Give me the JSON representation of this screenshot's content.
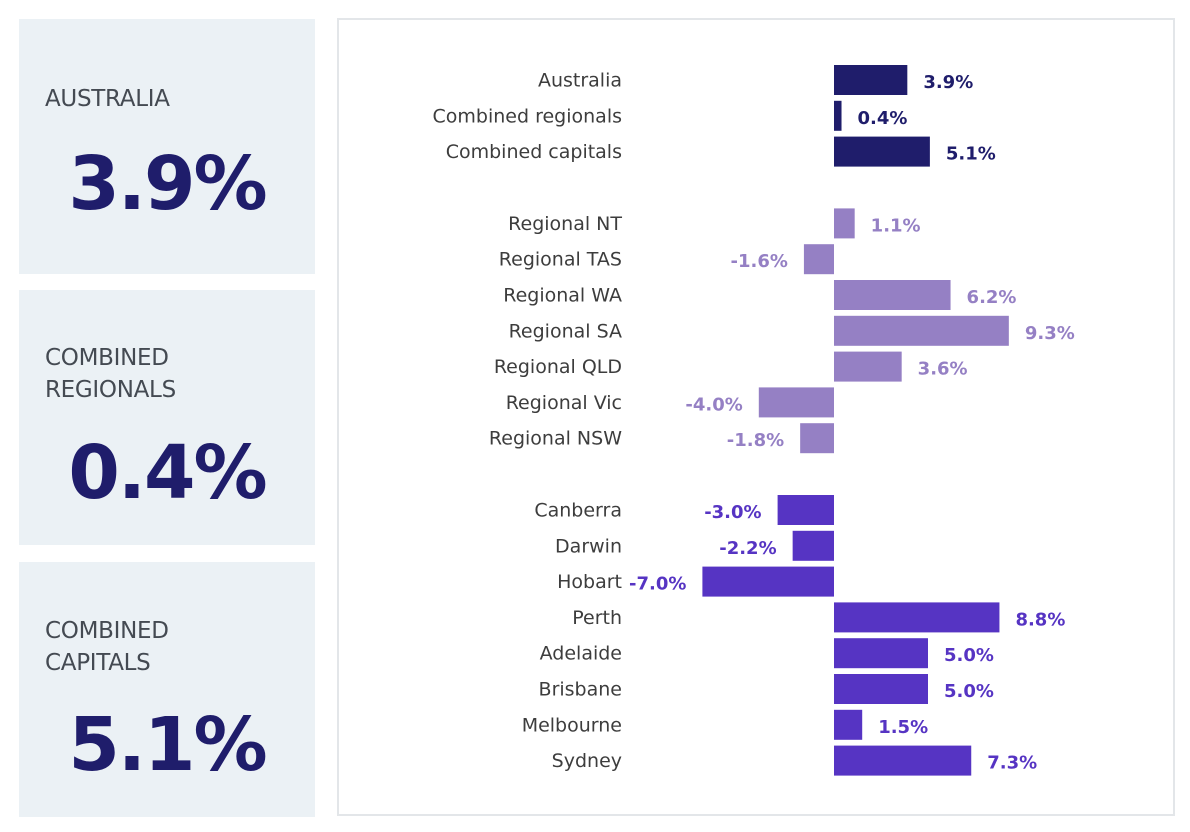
{
  "kpis": [
    {
      "label_lines": [
        "AUSTRALIA"
      ],
      "value": "3.9%"
    },
    {
      "label_lines": [
        "COMBINED",
        "REGIONALS"
      ],
      "value": "0.4%"
    },
    {
      "label_lines": [
        "COMBINED",
        "CAPITALS"
      ],
      "value": "5.1%"
    }
  ],
  "colors": {
    "navy": "#1f1d6b",
    "lavender": "#9580c4",
    "purple": "#5634c3"
  },
  "chart_data": {
    "type": "bar",
    "orientation": "horizontal",
    "title": "",
    "xlabel": "",
    "ylabel": "",
    "xlim": [
      -10,
      10
    ],
    "groups": [
      {
        "color": "navy",
        "bars": [
          {
            "label": "Australia",
            "value": 3.9,
            "value_label": "3.9%"
          },
          {
            "label": "Combined regionals",
            "value": 0.4,
            "value_label": "0.4%"
          },
          {
            "label": "Combined capitals",
            "value": 5.1,
            "value_label": "5.1%"
          }
        ]
      },
      {
        "color": "lavender",
        "bars": [
          {
            "label": "Regional NT",
            "value": 1.1,
            "value_label": "1.1%"
          },
          {
            "label": "Regional TAS",
            "value": -1.6,
            "value_label": "-1.6%"
          },
          {
            "label": "Regional WA",
            "value": 6.2,
            "value_label": "6.2%"
          },
          {
            "label": "Regional SA",
            "value": 9.3,
            "value_label": "9.3%"
          },
          {
            "label": "Regional QLD",
            "value": 3.6,
            "value_label": "3.6%"
          },
          {
            "label": "Regional Vic",
            "value": -4.0,
            "value_label": "-4.0%"
          },
          {
            "label": "Regional NSW",
            "value": -1.8,
            "value_label": "-1.8%"
          }
        ]
      },
      {
        "color": "purple",
        "bars": [
          {
            "label": "Canberra",
            "value": -3.0,
            "value_label": "-3.0%"
          },
          {
            "label": "Darwin",
            "value": -2.2,
            "value_label": "-2.2%"
          },
          {
            "label": "Hobart",
            "value": -7.0,
            "value_label": "-7.0%"
          },
          {
            "label": "Perth",
            "value": 8.8,
            "value_label": "8.8%"
          },
          {
            "label": "Adelaide",
            "value": 5.0,
            "value_label": "5.0%"
          },
          {
            "label": "Brisbane",
            "value": 5.0,
            "value_label": "5.0%"
          },
          {
            "label": "Melbourne",
            "value": 1.5,
            "value_label": "1.5%"
          },
          {
            "label": "Sydney",
            "value": 7.3,
            "value_label": "7.3%"
          }
        ]
      }
    ]
  }
}
